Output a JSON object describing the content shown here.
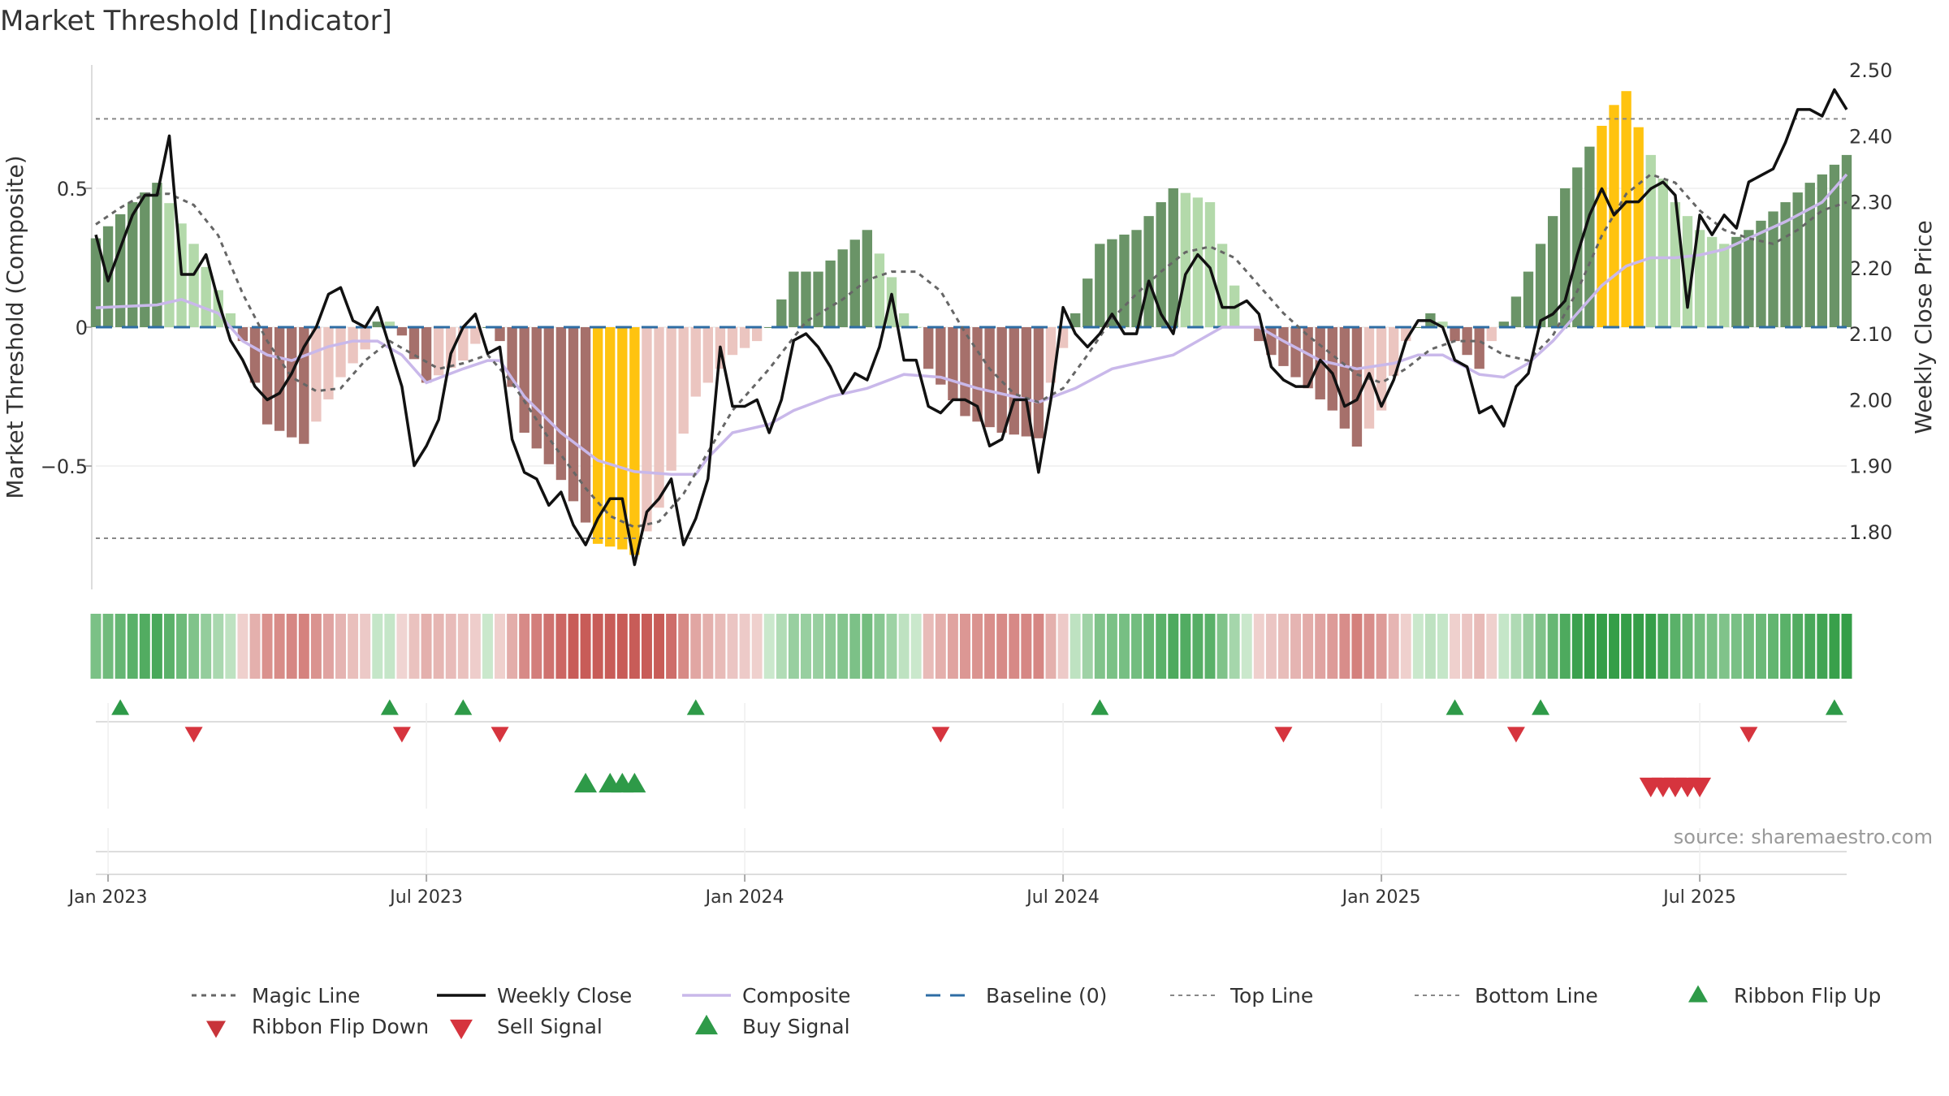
{
  "title": "Market Threshold [Indicator]",
  "source": "source: sharemaestro.com",
  "colors": {
    "pos_dark": "#6a9467",
    "pos_light": "#b3d9aa",
    "neg_dark": "#a6706b",
    "neg_light": "#ebc5c0",
    "extreme": "#ffc30f",
    "close": "#111111",
    "composite": "#c9b8ea",
    "magic": "#666666",
    "baseline": "#2e6da4",
    "guide": "#888888",
    "buy": "#2e9a48",
    "sell": "#d6343e",
    "grid": "#eeeeee"
  },
  "chart_data": {
    "type": "bar+line",
    "title": "Market Threshold [Indicator]",
    "ylabel_left": "Market Threshold (Composite)",
    "ylabel_right": "Weekly Close Price",
    "ylim_left": [
      -0.95,
      0.95
    ],
    "ylim_right": [
      1.71,
      2.51
    ],
    "yticks_left": [
      {
        "v": 0.5,
        "label": "0.5"
      },
      {
        "v": 0,
        "label": "0"
      },
      {
        "v": -0.5,
        "label": "−0.5"
      }
    ],
    "yticks_right": [
      {
        "v": 2.5,
        "label": "2.50"
      },
      {
        "v": 2.4,
        "label": "2.40"
      },
      {
        "v": 2.3,
        "label": "2.30"
      },
      {
        "v": 2.2,
        "label": "2.20"
      },
      {
        "v": 2.1,
        "label": "2.10"
      },
      {
        "v": 2.0,
        "label": "2.00"
      },
      {
        "v": 1.9,
        "label": "1.90"
      },
      {
        "v": 1.8,
        "label": "1.80"
      }
    ],
    "x_start": "2023-01-01",
    "week_count": 144,
    "x_ticks": [
      {
        "week": 1,
        "label": "Jan 2023"
      },
      {
        "week": 27,
        "label": "Jul 2023"
      },
      {
        "week": 53,
        "label": "Jan 2024"
      },
      {
        "week": 79,
        "label": "Jul 2024"
      },
      {
        "week": 105,
        "label": "Jan 2025"
      },
      {
        "week": 131,
        "label": "Jul 2025"
      }
    ],
    "top_line": 0.75,
    "bottom_line": -0.76,
    "baseline": 0,
    "phase_keyframes": [
      [
        0,
        0.32
      ],
      [
        3,
        0.45
      ],
      [
        5,
        0.52
      ],
      [
        8,
        0.3
      ],
      [
        11,
        0.05
      ],
      [
        12,
        -0.05
      ],
      [
        14,
        -0.35
      ],
      [
        17,
        -0.42
      ],
      [
        20,
        -0.18
      ],
      [
        22,
        -0.08
      ],
      [
        23,
        0.02
      ],
      [
        24,
        0.02
      ],
      [
        25,
        -0.03
      ],
      [
        27,
        -0.2
      ],
      [
        30,
        -0.12
      ],
      [
        32,
        0.0
      ],
      [
        33,
        -0.05
      ],
      [
        35,
        -0.38
      ],
      [
        38,
        -0.55
      ],
      [
        41,
        -0.78
      ],
      [
        43,
        -0.8
      ],
      [
        44,
        -0.82
      ],
      [
        46,
        -0.65
      ],
      [
        49,
        -0.25
      ],
      [
        52,
        -0.1
      ],
      [
        54,
        -0.05
      ],
      [
        55,
        0.0
      ],
      [
        57,
        0.2
      ],
      [
        59,
        0.2
      ],
      [
        61,
        0.28
      ],
      [
        63,
        0.35
      ],
      [
        65,
        0.18
      ],
      [
        66,
        0.05
      ],
      [
        67,
        0.0
      ],
      [
        68,
        -0.15
      ],
      [
        71,
        -0.32
      ],
      [
        74,
        -0.38
      ],
      [
        77,
        -0.4
      ],
      [
        78,
        -0.2
      ],
      [
        80,
        0.05
      ],
      [
        82,
        0.3
      ],
      [
        85,
        0.35
      ],
      [
        88,
        0.5
      ],
      [
        91,
        0.45
      ],
      [
        93,
        0.15
      ],
      [
        94,
        0.0
      ],
      [
        96,
        -0.1
      ],
      [
        99,
        -0.22
      ],
      [
        101,
        -0.3
      ],
      [
        103,
        -0.43
      ],
      [
        105,
        -0.3
      ],
      [
        107,
        -0.05
      ],
      [
        109,
        0.05
      ],
      [
        110,
        0.02
      ],
      [
        111,
        -0.05
      ],
      [
        113,
        -0.15
      ],
      [
        114,
        -0.05
      ],
      [
        115,
        0.02
      ],
      [
        117,
        0.2
      ],
      [
        120,
        0.5
      ],
      [
        122,
        0.65
      ],
      [
        124,
        0.8
      ],
      [
        125,
        0.85
      ],
      [
        126,
        0.72
      ],
      [
        127,
        0.62
      ],
      [
        129,
        0.45
      ],
      [
        131,
        0.35
      ],
      [
        133,
        0.3
      ],
      [
        135,
        0.35
      ],
      [
        138,
        0.45
      ],
      [
        140,
        0.52
      ],
      [
        141,
        0.55
      ],
      [
        143,
        0.62
      ]
    ],
    "extreme_weeks": [
      41,
      42,
      43,
      44,
      123,
      124,
      125,
      126
    ],
    "weekly_close": [
      [
        0,
        2.25
      ],
      [
        1,
        2.18
      ],
      [
        3,
        2.28
      ],
      [
        4,
        2.31
      ],
      [
        5,
        2.31
      ],
      [
        6,
        2.4
      ],
      [
        7,
        2.19
      ],
      [
        8,
        2.19
      ],
      [
        9,
        2.22
      ],
      [
        10,
        2.15
      ],
      [
        11,
        2.09
      ],
      [
        12,
        2.06
      ],
      [
        13,
        2.02
      ],
      [
        14,
        2.0
      ],
      [
        15,
        2.01
      ],
      [
        16,
        2.04
      ],
      [
        17,
        2.08
      ],
      [
        18,
        2.11
      ],
      [
        19,
        2.16
      ],
      [
        20,
        2.17
      ],
      [
        21,
        2.12
      ],
      [
        22,
        2.11
      ],
      [
        23,
        2.14
      ],
      [
        24,
        2.08
      ],
      [
        25,
        2.02
      ],
      [
        26,
        1.9
      ],
      [
        27,
        1.93
      ],
      [
        28,
        1.97
      ],
      [
        29,
        2.07
      ],
      [
        30,
        2.11
      ],
      [
        31,
        2.13
      ],
      [
        32,
        2.07
      ],
      [
        33,
        2.08
      ],
      [
        34,
        1.94
      ],
      [
        35,
        1.89
      ],
      [
        36,
        1.88
      ],
      [
        37,
        1.84
      ],
      [
        38,
        1.86
      ],
      [
        39,
        1.81
      ],
      [
        40,
        1.78
      ],
      [
        41,
        1.82
      ],
      [
        42,
        1.85
      ],
      [
        43,
        1.85
      ],
      [
        44,
        1.75
      ],
      [
        45,
        1.83
      ],
      [
        46,
        1.85
      ],
      [
        47,
        1.88
      ],
      [
        48,
        1.78
      ],
      [
        49,
        1.82
      ],
      [
        50,
        1.88
      ],
      [
        51,
        2.08
      ],
      [
        52,
        1.99
      ],
      [
        53,
        1.99
      ],
      [
        54,
        2.0
      ],
      [
        55,
        1.95
      ],
      [
        56,
        2.0
      ],
      [
        57,
        2.09
      ],
      [
        58,
        2.1
      ],
      [
        59,
        2.08
      ],
      [
        60,
        2.05
      ],
      [
        61,
        2.01
      ],
      [
        62,
        2.04
      ],
      [
        63,
        2.03
      ],
      [
        64,
        2.08
      ],
      [
        65,
        2.16
      ],
      [
        66,
        2.06
      ],
      [
        67,
        2.06
      ],
      [
        68,
        1.99
      ],
      [
        69,
        1.98
      ],
      [
        70,
        2.0
      ],
      [
        71,
        2.0
      ],
      [
        72,
        1.99
      ],
      [
        73,
        1.93
      ],
      [
        74,
        1.94
      ],
      [
        75,
        2.0
      ],
      [
        76,
        2.0
      ],
      [
        77,
        1.89
      ],
      [
        78,
        2.0
      ],
      [
        79,
        2.14
      ],
      [
        80,
        2.1
      ],
      [
        81,
        2.08
      ],
      [
        82,
        2.1
      ],
      [
        83,
        2.13
      ],
      [
        84,
        2.1
      ],
      [
        85,
        2.1
      ],
      [
        86,
        2.18
      ],
      [
        87,
        2.13
      ],
      [
        88,
        2.1
      ],
      [
        89,
        2.19
      ],
      [
        90,
        2.22
      ],
      [
        91,
        2.2
      ],
      [
        92,
        2.14
      ],
      [
        93,
        2.14
      ],
      [
        94,
        2.15
      ],
      [
        95,
        2.13
      ],
      [
        96,
        2.05
      ],
      [
        97,
        2.03
      ],
      [
        98,
        2.02
      ],
      [
        99,
        2.02
      ],
      [
        100,
        2.06
      ],
      [
        101,
        2.04
      ],
      [
        102,
        1.99
      ],
      [
        103,
        2.0
      ],
      [
        104,
        2.04
      ],
      [
        105,
        1.99
      ],
      [
        106,
        2.03
      ],
      [
        107,
        2.09
      ],
      [
        108,
        2.12
      ],
      [
        109,
        2.12
      ],
      [
        110,
        2.11
      ],
      [
        111,
        2.06
      ],
      [
        112,
        2.05
      ],
      [
        113,
        1.98
      ],
      [
        114,
        1.99
      ],
      [
        115,
        1.96
      ],
      [
        116,
        2.02
      ],
      [
        117,
        2.04
      ],
      [
        118,
        2.12
      ],
      [
        119,
        2.13
      ],
      [
        120,
        2.15
      ],
      [
        121,
        2.22
      ],
      [
        122,
        2.28
      ],
      [
        123,
        2.32
      ],
      [
        124,
        2.28
      ],
      [
        125,
        2.3
      ],
      [
        126,
        2.3
      ],
      [
        127,
        2.32
      ],
      [
        128,
        2.33
      ],
      [
        129,
        2.31
      ],
      [
        130,
        2.14
      ],
      [
        131,
        2.28
      ],
      [
        132,
        2.25
      ],
      [
        133,
        2.28
      ],
      [
        134,
        2.26
      ],
      [
        135,
        2.33
      ],
      [
        136,
        2.34
      ],
      [
        137,
        2.35
      ],
      [
        138,
        2.39
      ],
      [
        139,
        2.44
      ],
      [
        140,
        2.44
      ],
      [
        141,
        2.43
      ],
      [
        142,
        2.47
      ],
      [
        143,
        2.44
      ]
    ],
    "composite": [
      [
        0,
        0.07
      ],
      [
        5,
        0.08
      ],
      [
        7,
        0.1
      ],
      [
        10,
        0.05
      ],
      [
        12,
        -0.05
      ],
      [
        14,
        -0.1
      ],
      [
        16,
        -0.12
      ],
      [
        19,
        -0.07
      ],
      [
        21,
        -0.05
      ],
      [
        23,
        -0.05
      ],
      [
        25,
        -0.1
      ],
      [
        27,
        -0.2
      ],
      [
        30,
        -0.15
      ],
      [
        32,
        -0.12
      ],
      [
        33,
        -0.12
      ],
      [
        35,
        -0.25
      ],
      [
        38,
        -0.38
      ],
      [
        41,
        -0.48
      ],
      [
        44,
        -0.52
      ],
      [
        47,
        -0.53
      ],
      [
        49,
        -0.53
      ],
      [
        50,
        -0.47
      ],
      [
        52,
        -0.38
      ],
      [
        55,
        -0.35
      ],
      [
        57,
        -0.3
      ],
      [
        60,
        -0.25
      ],
      [
        63,
        -0.22
      ],
      [
        66,
        -0.17
      ],
      [
        69,
        -0.18
      ],
      [
        72,
        -0.22
      ],
      [
        75,
        -0.25
      ],
      [
        77,
        -0.27
      ],
      [
        80,
        -0.22
      ],
      [
        83,
        -0.15
      ],
      [
        86,
        -0.12
      ],
      [
        88,
        -0.1
      ],
      [
        90,
        -0.05
      ],
      [
        92,
        0.0
      ],
      [
        95,
        0.0
      ],
      [
        97,
        -0.05
      ],
      [
        100,
        -0.12
      ],
      [
        103,
        -0.15
      ],
      [
        106,
        -0.13
      ],
      [
        108,
        -0.1
      ],
      [
        110,
        -0.1
      ],
      [
        113,
        -0.17
      ],
      [
        115,
        -0.18
      ],
      [
        117,
        -0.13
      ],
      [
        119,
        -0.05
      ],
      [
        121,
        0.05
      ],
      [
        123,
        0.15
      ],
      [
        125,
        0.22
      ],
      [
        127,
        0.25
      ],
      [
        129,
        0.25
      ],
      [
        131,
        0.26
      ],
      [
        133,
        0.28
      ],
      [
        135,
        0.32
      ],
      [
        138,
        0.38
      ],
      [
        141,
        0.45
      ],
      [
        143,
        0.55
      ]
    ],
    "magic_line": [
      [
        0,
        0.37
      ],
      [
        2,
        0.43
      ],
      [
        4,
        0.48
      ],
      [
        6,
        0.48
      ],
      [
        8,
        0.44
      ],
      [
        10,
        0.33
      ],
      [
        12,
        0.12
      ],
      [
        14,
        -0.05
      ],
      [
        16,
        -0.18
      ],
      [
        18,
        -0.23
      ],
      [
        20,
        -0.22
      ],
      [
        22,
        -0.12
      ],
      [
        24,
        -0.05
      ],
      [
        26,
        -0.1
      ],
      [
        28,
        -0.15
      ],
      [
        30,
        -0.13
      ],
      [
        32,
        -0.1
      ],
      [
        34,
        -0.2
      ],
      [
        37,
        -0.4
      ],
      [
        40,
        -0.58
      ],
      [
        42,
        -0.68
      ],
      [
        44,
        -0.72
      ],
      [
        46,
        -0.7
      ],
      [
        48,
        -0.6
      ],
      [
        50,
        -0.45
      ],
      [
        52,
        -0.3
      ],
      [
        55,
        -0.15
      ],
      [
        58,
        0.02
      ],
      [
        61,
        0.1
      ],
      [
        63,
        0.17
      ],
      [
        65,
        0.2
      ],
      [
        67,
        0.2
      ],
      [
        69,
        0.13
      ],
      [
        71,
        -0.02
      ],
      [
        73,
        -0.15
      ],
      [
        75,
        -0.24
      ],
      [
        77,
        -0.27
      ],
      [
        79,
        -0.22
      ],
      [
        81,
        -0.1
      ],
      [
        83,
        0.03
      ],
      [
        85,
        0.12
      ],
      [
        87,
        0.2
      ],
      [
        89,
        0.27
      ],
      [
        91,
        0.29
      ],
      [
        93,
        0.25
      ],
      [
        95,
        0.15
      ],
      [
        97,
        0.05
      ],
      [
        99,
        -0.03
      ],
      [
        101,
        -0.1
      ],
      [
        103,
        -0.17
      ],
      [
        105,
        -0.2
      ],
      [
        107,
        -0.15
      ],
      [
        109,
        -0.08
      ],
      [
        111,
        -0.05
      ],
      [
        113,
        -0.05
      ],
      [
        115,
        -0.1
      ],
      [
        117,
        -0.12
      ],
      [
        119,
        -0.03
      ],
      [
        121,
        0.13
      ],
      [
        123,
        0.33
      ],
      [
        125,
        0.48
      ],
      [
        127,
        0.55
      ],
      [
        129,
        0.52
      ],
      [
        131,
        0.42
      ],
      [
        133,
        0.35
      ],
      [
        135,
        0.32
      ],
      [
        137,
        0.3
      ],
      [
        139,
        0.35
      ],
      [
        141,
        0.42
      ],
      [
        143,
        0.45
      ]
    ],
    "ribbon_weeks": 144,
    "ribbon_flip_up": [
      2,
      24,
      30,
      49,
      82,
      111,
      118,
      142
    ],
    "ribbon_flip_down": [
      8,
      25,
      33,
      69,
      97,
      116,
      135
    ],
    "buy_signal": [
      40,
      42,
      43,
      44
    ],
    "sell_signal": [
      127,
      128,
      129,
      130,
      131
    ],
    "legend": [
      {
        "key": "magic",
        "label": "Magic Line"
      },
      {
        "key": "close",
        "label": "Weekly Close"
      },
      {
        "key": "composite",
        "label": "Composite"
      },
      {
        "key": "baseline",
        "label": "Baseline (0)"
      },
      {
        "key": "top",
        "label": "Top Line"
      },
      {
        "key": "bottom",
        "label": "Bottom Line"
      },
      {
        "key": "flipup",
        "label": "Ribbon Flip Up"
      },
      {
        "key": "flipdown",
        "label": "Ribbon Flip Down"
      },
      {
        "key": "sell",
        "label": "Sell Signal"
      },
      {
        "key": "buy",
        "label": "Buy Signal"
      }
    ]
  }
}
